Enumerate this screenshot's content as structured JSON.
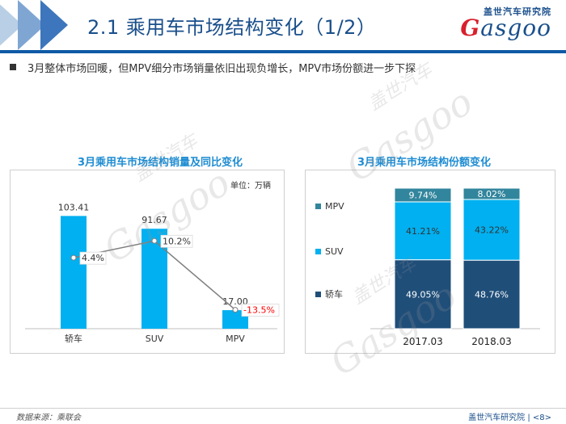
{
  "header": {
    "title": "2.1 乘用车市场结构变化（1/2）",
    "logo_cn": "盖世汽车研究院",
    "logo_en_first": "G",
    "logo_en_rest": "asgoo",
    "band_colors": [
      "#b9cfe6",
      "#7fa6d2",
      "#3d76bc"
    ]
  },
  "bullet": "3月整体市场回暖，但MPV细分市场销量依旧出现负增长，MPV市场份额进一步下探",
  "left_chart": {
    "title": "3月乘用车市场结构销量及同比变化",
    "unit_label": "单位：万辆",
    "chart_data": {
      "type": "bar",
      "categories": [
        "轿车",
        "SUV",
        "MPV"
      ],
      "values": [
        103.41,
        91.67,
        17.0
      ],
      "value_labels": [
        "103.41",
        "91.67",
        "17.00"
      ],
      "growth": [
        4.4,
        10.2,
        -13.5
      ],
      "growth_labels": [
        "4.4%",
        "10.2%",
        "-13.5%"
      ],
      "bar_color": "#00b0f0",
      "line_color": "#7f7f7f",
      "negative_color": "#ff0000",
      "ylim": [
        0,
        120
      ],
      "growth_lim": [
        -20,
        25
      ]
    }
  },
  "right_chart": {
    "title": "3月乘用车市场结构份额变化",
    "chart_data": {
      "type": "bar",
      "stacked": true,
      "categories": [
        "2017.03",
        "2018.03"
      ],
      "series": [
        {
          "name": "轿车",
          "values": [
            49.05,
            48.76
          ],
          "labels": [
            "49.05%",
            "48.76%"
          ],
          "color": "#1f4e79"
        },
        {
          "name": "SUV",
          "values": [
            41.21,
            43.22
          ],
          "labels": [
            "41.21%",
            "43.22%"
          ],
          "color": "#00b0f0"
        },
        {
          "name": "MPV",
          "values": [
            9.74,
            8.02
          ],
          "labels": [
            "9.74%",
            "8.02%"
          ],
          "color": "#31859c"
        }
      ],
      "legend_order": [
        "MPV",
        "SUV",
        "轿车"
      ],
      "ylim": [
        0,
        100
      ]
    }
  },
  "watermark": "Gasgoo",
  "watermark_cn": "盖世汽车",
  "footer": {
    "source": "数据来源：乘联会",
    "org": "盖世汽车研究院",
    "page": "| <8>"
  }
}
